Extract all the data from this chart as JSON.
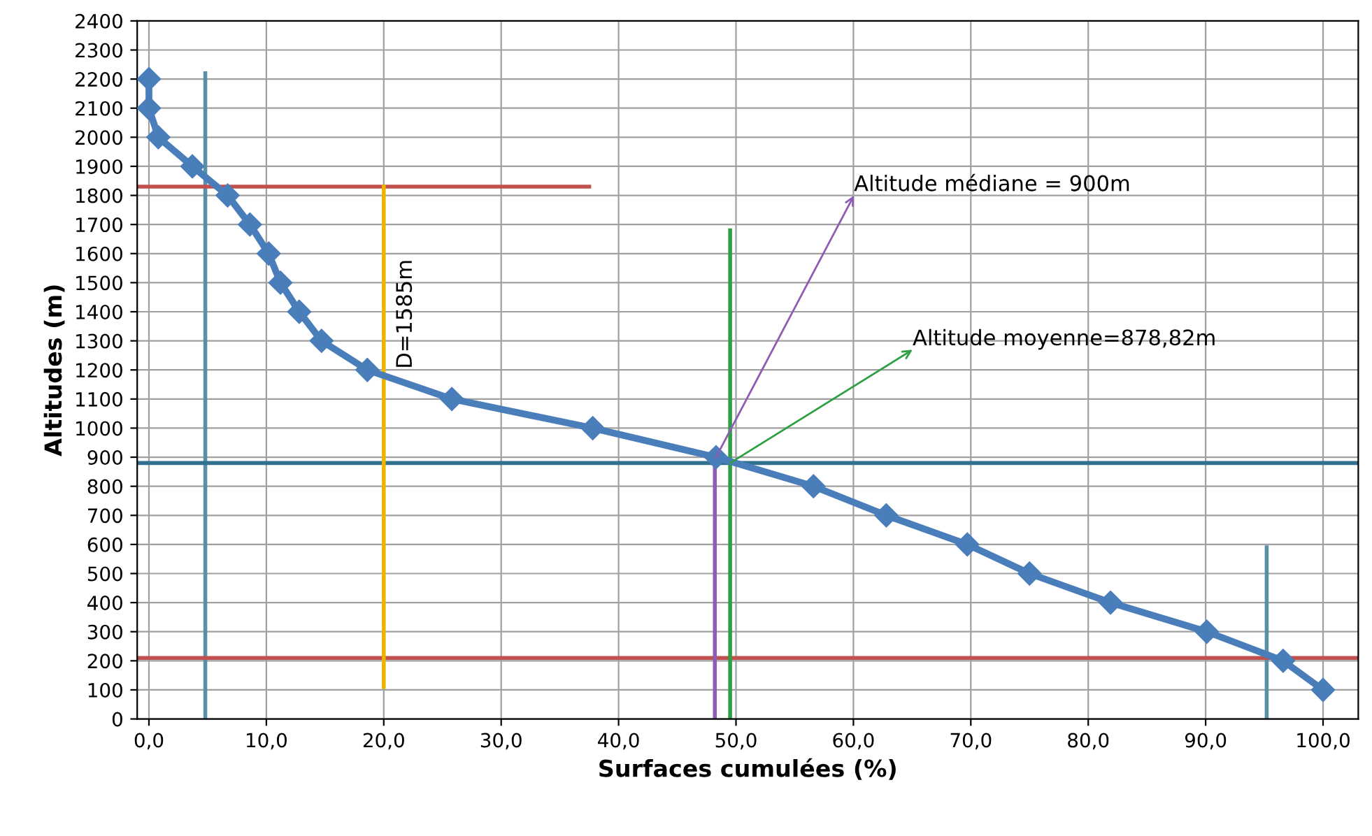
{
  "chart_data": {
    "type": "line",
    "xlabel": "Surfaces cumulées (%)",
    "ylabel": "Altitudes (m)",
    "xlim": [
      -1,
      103
    ],
    "ylim": [
      0,
      2400
    ],
    "xticks": [
      {
        "value": 0,
        "label": "0,0"
      },
      {
        "value": 10,
        "label": "10,0"
      },
      {
        "value": 20,
        "label": "20,0"
      },
      {
        "value": 30,
        "label": "30,0"
      },
      {
        "value": 40,
        "label": "40,0"
      },
      {
        "value": 50,
        "label": "50,0"
      },
      {
        "value": 60,
        "label": "60,0"
      },
      {
        "value": 70,
        "label": "70,0"
      },
      {
        "value": 80,
        "label": "80,0"
      },
      {
        "value": 90,
        "label": "90,0"
      },
      {
        "value": 100,
        "label": "100,0"
      }
    ],
    "yticks": [
      0,
      100,
      200,
      300,
      400,
      500,
      600,
      700,
      800,
      900,
      1000,
      1100,
      1200,
      1300,
      1400,
      1500,
      1600,
      1700,
      1800,
      1900,
      2000,
      2100,
      2200,
      2300,
      2400
    ],
    "grid": true,
    "series": [
      {
        "color": "#4a7ebb",
        "marker": "diamond",
        "x": [
          0,
          0,
          0.8,
          3.7,
          6.7,
          8.6,
          10.2,
          11.2,
          12.8,
          14.7,
          18.6,
          25.8,
          37.8,
          48.3,
          56.6,
          62.8,
          69.7,
          75.0,
          81.9,
          90.1,
          96.6,
          100
        ],
        "values": [
          2200,
          2100,
          2000,
          1900,
          1800,
          1700,
          1600,
          1500,
          1400,
          1300,
          1200,
          1100,
          1000,
          900,
          800,
          700,
          600,
          500,
          400,
          300,
          200,
          100
        ]
      },
      {
        "color": "#5b8fa8",
        "marker": "none",
        "x": [
          4.8,
          4.8
        ],
        "values": [
          0,
          2220
        ]
      },
      {
        "color": "#5b8fa8",
        "marker": "none",
        "x": [
          95.2,
          95.2
        ],
        "values": [
          0,
          590
        ]
      },
      {
        "color": "#c0504d",
        "marker": "none",
        "x": [
          -1,
          37.5
        ],
        "values": [
          1830,
          1830
        ]
      },
      {
        "color": "#c0504d",
        "marker": "none",
        "x": [
          -1,
          103
        ],
        "values": [
          210,
          210
        ]
      },
      {
        "color": "#31708f",
        "marker": "none",
        "x": [
          -1,
          103
        ],
        "values": [
          880,
          880
        ]
      },
      {
        "color": "#f0b400",
        "marker": "none",
        "x": [
          20,
          20
        ],
        "values": [
          110,
          1830
        ]
      },
      {
        "color": "#2ea043",
        "marker": "none",
        "x": [
          49.5,
          49.5
        ],
        "values": [
          0,
          1680
        ]
      },
      {
        "color": "#8e5bb5",
        "marker": "none",
        "x": [
          48.2,
          48.2
        ],
        "values": [
          0,
          900
        ]
      }
    ],
    "annotations": [
      {
        "text": "Altitude médiane = 900m",
        "x": 48.3,
        "y": 900
      },
      {
        "text": "Altitude moyenne=878,82m",
        "x": 49.5,
        "y": 880
      },
      "D=1585m"
    ]
  }
}
